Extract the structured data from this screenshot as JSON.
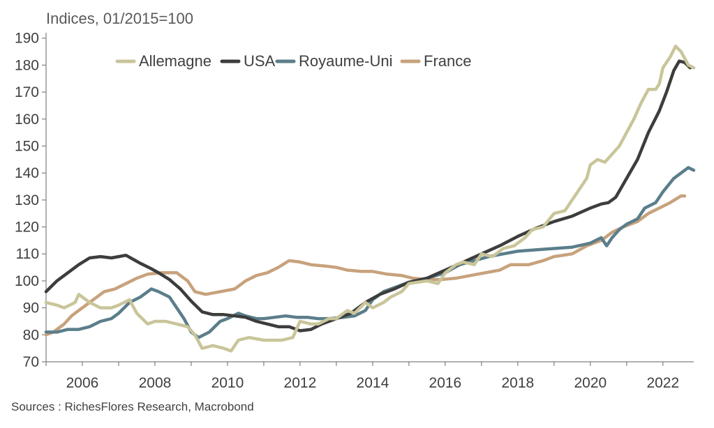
{
  "unit_label": "Indices, 01/2015=100",
  "source": "Sources : RichesFlores Research, Macrobond",
  "chart_data": {
    "type": "line",
    "ylim": [
      70,
      192
    ],
    "xlim": [
      2005.0,
      2022.85
    ],
    "yticks": [
      70,
      80,
      90,
      100,
      110,
      120,
      130,
      140,
      150,
      160,
      170,
      180,
      190
    ],
    "xticks": [
      2006,
      2008,
      2010,
      2012,
      2014,
      2016,
      2018,
      2020,
      2022
    ],
    "grid": false,
    "legend": "top-left",
    "series": [
      {
        "name": "Allemagne",
        "color": "#c9c59a",
        "points": [
          [
            2005.0,
            92
          ],
          [
            2005.3,
            91
          ],
          [
            2005.5,
            90
          ],
          [
            2005.8,
            92
          ],
          [
            2005.9,
            95
          ],
          [
            2006.2,
            92
          ],
          [
            2006.5,
            90
          ],
          [
            2006.8,
            90
          ],
          [
            2007.0,
            91
          ],
          [
            2007.3,
            93
          ],
          [
            2007.5,
            88
          ],
          [
            2007.8,
            84
          ],
          [
            2008.0,
            85
          ],
          [
            2008.3,
            85
          ],
          [
            2008.6,
            84
          ],
          [
            2008.9,
            83
          ],
          [
            2009.1,
            80
          ],
          [
            2009.3,
            75
          ],
          [
            2009.6,
            76
          ],
          [
            2009.9,
            75
          ],
          [
            2010.1,
            74
          ],
          [
            2010.3,
            78
          ],
          [
            2010.6,
            79
          ],
          [
            2011.0,
            78
          ],
          [
            2011.5,
            78
          ],
          [
            2011.8,
            79
          ],
          [
            2012.0,
            85
          ],
          [
            2012.3,
            84
          ],
          [
            2012.5,
            84
          ],
          [
            2012.8,
            86
          ],
          [
            2013.0,
            86
          ],
          [
            2013.3,
            89
          ],
          [
            2013.5,
            88
          ],
          [
            2013.8,
            92
          ],
          [
            2014.0,
            90
          ],
          [
            2014.3,
            92
          ],
          [
            2014.5,
            94
          ],
          [
            2014.8,
            96
          ],
          [
            2015.0,
            99
          ],
          [
            2015.5,
            100
          ],
          [
            2015.8,
            99
          ],
          [
            2016.0,
            103
          ],
          [
            2016.3,
            106
          ],
          [
            2016.5,
            107
          ],
          [
            2016.8,
            106
          ],
          [
            2017.0,
            110
          ],
          [
            2017.3,
            109
          ],
          [
            2017.6,
            112
          ],
          [
            2017.9,
            113
          ],
          [
            2018.2,
            116
          ],
          [
            2018.4,
            119
          ],
          [
            2018.7,
            120
          ],
          [
            2019.0,
            125
          ],
          [
            2019.3,
            126
          ],
          [
            2019.6,
            132
          ],
          [
            2019.9,
            138
          ],
          [
            2020.0,
            143
          ],
          [
            2020.2,
            145
          ],
          [
            2020.4,
            144
          ],
          [
            2020.6,
            147
          ],
          [
            2020.8,
            150
          ],
          [
            2021.0,
            155
          ],
          [
            2021.2,
            160
          ],
          [
            2021.4,
            166
          ],
          [
            2021.6,
            171
          ],
          [
            2021.8,
            171
          ],
          [
            2021.9,
            173
          ],
          [
            2022.0,
            179
          ],
          [
            2022.2,
            183
          ],
          [
            2022.35,
            187
          ],
          [
            2022.5,
            185
          ],
          [
            2022.7,
            180
          ],
          [
            2022.85,
            179
          ]
        ]
      },
      {
        "name": "USA",
        "color": "#3d3d3d",
        "points": [
          [
            2005.0,
            96
          ],
          [
            2005.3,
            100
          ],
          [
            2005.6,
            103
          ],
          [
            2005.9,
            106
          ],
          [
            2006.2,
            108.5
          ],
          [
            2006.5,
            109
          ],
          [
            2006.8,
            108.5
          ],
          [
            2007.0,
            109
          ],
          [
            2007.2,
            109.5
          ],
          [
            2007.4,
            108
          ],
          [
            2007.6,
            106.5
          ],
          [
            2007.9,
            104.5
          ],
          [
            2008.1,
            103
          ],
          [
            2008.4,
            100.5
          ],
          [
            2008.7,
            97
          ],
          [
            2009.0,
            92.5
          ],
          [
            2009.3,
            88.5
          ],
          [
            2009.6,
            87.5
          ],
          [
            2009.9,
            87.5
          ],
          [
            2010.2,
            87
          ],
          [
            2010.5,
            86.5
          ],
          [
            2010.8,
            85
          ],
          [
            2011.1,
            84
          ],
          [
            2011.4,
            83
          ],
          [
            2011.7,
            83
          ],
          [
            2012.0,
            81.5
          ],
          [
            2012.3,
            82
          ],
          [
            2012.6,
            84
          ],
          [
            2013.0,
            86
          ],
          [
            2013.4,
            88
          ],
          [
            2013.8,
            92
          ],
          [
            2014.2,
            95
          ],
          [
            2014.6,
            97
          ],
          [
            2015.0,
            99.5
          ],
          [
            2015.5,
            101
          ],
          [
            2016.0,
            104
          ],
          [
            2016.5,
            107
          ],
          [
            2017.0,
            110
          ],
          [
            2017.5,
            113
          ],
          [
            2018.0,
            116.5
          ],
          [
            2018.5,
            119.5
          ],
          [
            2019.0,
            122
          ],
          [
            2019.5,
            124
          ],
          [
            2020.0,
            127
          ],
          [
            2020.3,
            128.5
          ],
          [
            2020.5,
            129
          ],
          [
            2020.7,
            131
          ],
          [
            2021.0,
            138
          ],
          [
            2021.3,
            145
          ],
          [
            2021.6,
            155
          ],
          [
            2021.9,
            163
          ],
          [
            2022.1,
            170
          ],
          [
            2022.3,
            178
          ],
          [
            2022.45,
            181.5
          ],
          [
            2022.6,
            181
          ],
          [
            2022.75,
            179
          ]
        ]
      },
      {
        "name": "Royaume-Uni",
        "color": "#5b7e8b",
        "points": [
          [
            2005.0,
            81
          ],
          [
            2005.3,
            81
          ],
          [
            2005.6,
            82
          ],
          [
            2005.9,
            82
          ],
          [
            2006.2,
            83
          ],
          [
            2006.5,
            85
          ],
          [
            2006.8,
            86
          ],
          [
            2007.0,
            88
          ],
          [
            2007.3,
            92
          ],
          [
            2007.6,
            94
          ],
          [
            2007.8,
            96
          ],
          [
            2007.9,
            97
          ],
          [
            2008.1,
            96
          ],
          [
            2008.4,
            94
          ],
          [
            2008.6,
            90
          ],
          [
            2008.8,
            86
          ],
          [
            2009.0,
            81
          ],
          [
            2009.2,
            79
          ],
          [
            2009.5,
            81
          ],
          [
            2009.8,
            85
          ],
          [
            2010.0,
            86
          ],
          [
            2010.3,
            88
          ],
          [
            2010.5,
            87
          ],
          [
            2010.8,
            86
          ],
          [
            2011.0,
            86
          ],
          [
            2011.3,
            86.5
          ],
          [
            2011.6,
            87
          ],
          [
            2011.9,
            86.5
          ],
          [
            2012.2,
            86.5
          ],
          [
            2012.5,
            86
          ],
          [
            2012.8,
            86
          ],
          [
            2013.2,
            86.5
          ],
          [
            2013.5,
            87
          ],
          [
            2013.8,
            89
          ],
          [
            2014.0,
            93
          ],
          [
            2014.3,
            96
          ],
          [
            2014.7,
            98
          ],
          [
            2015.0,
            99.5
          ],
          [
            2015.5,
            101
          ],
          [
            2016.0,
            103
          ],
          [
            2016.4,
            106
          ],
          [
            2016.8,
            107.5
          ],
          [
            2017.2,
            109
          ],
          [
            2017.6,
            110
          ],
          [
            2018.0,
            111
          ],
          [
            2018.5,
            111.5
          ],
          [
            2019.0,
            112
          ],
          [
            2019.5,
            112.5
          ],
          [
            2020.0,
            114
          ],
          [
            2020.3,
            116
          ],
          [
            2020.45,
            113
          ],
          [
            2020.6,
            116
          ],
          [
            2020.8,
            119
          ],
          [
            2021.0,
            121
          ],
          [
            2021.3,
            123
          ],
          [
            2021.5,
            127
          ],
          [
            2021.8,
            129
          ],
          [
            2022.0,
            133
          ],
          [
            2022.3,
            138
          ],
          [
            2022.5,
            140
          ],
          [
            2022.7,
            142
          ],
          [
            2022.85,
            141
          ]
        ]
      },
      {
        "name": "France",
        "color": "#c7a27c",
        "points": [
          [
            2005.0,
            80
          ],
          [
            2005.2,
            81
          ],
          [
            2005.5,
            84
          ],
          [
            2005.7,
            87
          ],
          [
            2006.0,
            90
          ],
          [
            2006.3,
            93
          ],
          [
            2006.6,
            96
          ],
          [
            2006.9,
            97
          ],
          [
            2007.2,
            99
          ],
          [
            2007.5,
            101
          ],
          [
            2007.8,
            102.5
          ],
          [
            2008.2,
            103
          ],
          [
            2008.6,
            103
          ],
          [
            2008.9,
            100
          ],
          [
            2009.1,
            96
          ],
          [
            2009.4,
            95
          ],
          [
            2009.8,
            96
          ],
          [
            2010.2,
            97
          ],
          [
            2010.5,
            100
          ],
          [
            2010.8,
            102
          ],
          [
            2011.1,
            103
          ],
          [
            2011.4,
            105
          ],
          [
            2011.7,
            107.5
          ],
          [
            2012.0,
            107
          ],
          [
            2012.3,
            106
          ],
          [
            2012.7,
            105.5
          ],
          [
            2013.0,
            105
          ],
          [
            2013.3,
            104
          ],
          [
            2013.7,
            103.5
          ],
          [
            2014.0,
            103.5
          ],
          [
            2014.4,
            102.5
          ],
          [
            2014.8,
            102
          ],
          [
            2015.1,
            101
          ],
          [
            2015.5,
            100.5
          ],
          [
            2015.9,
            100.5
          ],
          [
            2016.3,
            101
          ],
          [
            2016.7,
            102
          ],
          [
            2017.1,
            103
          ],
          [
            2017.5,
            104
          ],
          [
            2017.8,
            106
          ],
          [
            2018.3,
            106
          ],
          [
            2018.7,
            107.5
          ],
          [
            2019.0,
            109
          ],
          [
            2019.5,
            110
          ],
          [
            2019.9,
            113
          ],
          [
            2020.3,
            115
          ],
          [
            2020.6,
            118
          ],
          [
            2020.9,
            120
          ],
          [
            2021.3,
            122
          ],
          [
            2021.6,
            125
          ],
          [
            2021.9,
            127
          ],
          [
            2022.2,
            129
          ],
          [
            2022.5,
            131.5
          ],
          [
            2022.6,
            131.5
          ]
        ]
      }
    ]
  }
}
